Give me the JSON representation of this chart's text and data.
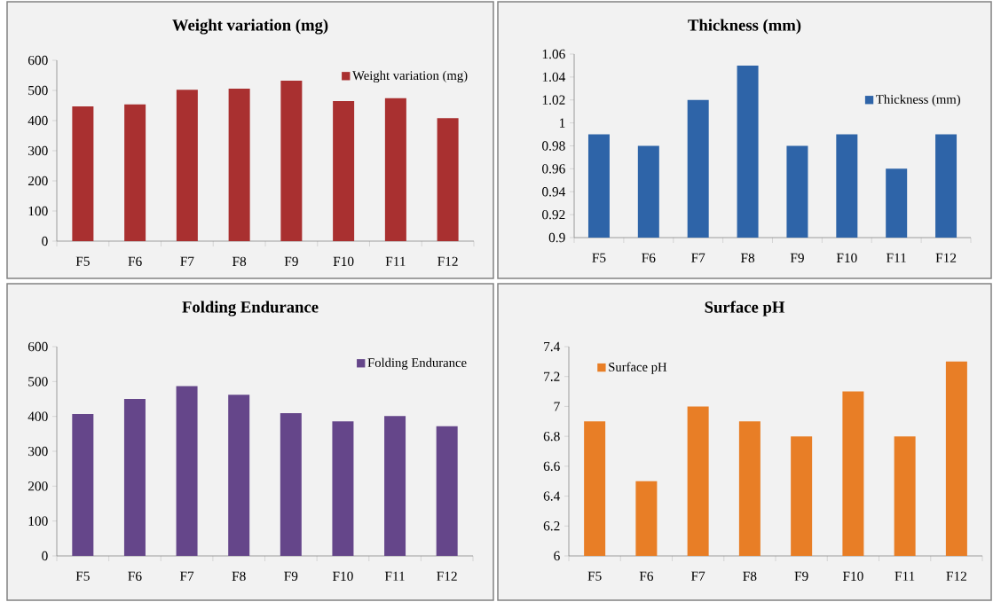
{
  "chart_data": [
    {
      "type": "bar",
      "title": "Weight variation (mg)",
      "categories": [
        "F5",
        "F6",
        "F7",
        "F8",
        "F9",
        "F10",
        "F11",
        "F12"
      ],
      "series": [
        {
          "name": "Weight variation (mg)",
          "color": "#a93030",
          "values": [
            447,
            454,
            502,
            506,
            532,
            465,
            474,
            408
          ]
        }
      ],
      "ylim": [
        0,
        600
      ],
      "yticks": [
        0,
        100,
        200,
        300,
        400,
        500,
        600
      ],
      "legend": "top right"
    },
    {
      "type": "bar",
      "title": "Thickness (mm)",
      "categories": [
        "F5",
        "F6",
        "F7",
        "F8",
        "F9",
        "F10",
        "F11",
        "F12"
      ],
      "series": [
        {
          "name": "Thickness (mm)",
          "color": "#2e64a8",
          "values": [
            0.99,
            0.98,
            1.02,
            1.05,
            0.98,
            0.99,
            0.96,
            0.99
          ]
        }
      ],
      "ylim": [
        0.9,
        1.06
      ],
      "yticks": [
        0.9,
        0.92,
        0.94,
        0.96,
        0.98,
        1,
        1.02,
        1.04,
        1.06
      ],
      "legend": "right"
    },
    {
      "type": "bar",
      "title": "Folding Endurance",
      "categories": [
        "F5",
        "F6",
        "F7",
        "F8",
        "F9",
        "F10",
        "F11",
        "F12"
      ],
      "series": [
        {
          "name": "Folding Endurance",
          "color": "#65468a",
          "values": [
            407,
            450,
            487,
            462,
            409,
            386,
            401,
            372
          ]
        }
      ],
      "ylim": [
        0,
        600
      ],
      "yticks": [
        0,
        100,
        200,
        300,
        400,
        500,
        600
      ],
      "legend": "top right"
    },
    {
      "type": "bar",
      "title": "Surface pH",
      "categories": [
        "F5",
        "F6",
        "F7",
        "F8",
        "F9",
        "F10",
        "F11",
        "F12"
      ],
      "series": [
        {
          "name": "Surface pH",
          "color": "#e87e26",
          "values": [
            6.9,
            6.5,
            7.0,
            6.9,
            6.8,
            7.1,
            6.8,
            7.3
          ]
        }
      ],
      "ylim": [
        6,
        7.4
      ],
      "yticks": [
        6,
        6.2,
        6.4,
        6.6,
        6.8,
        7,
        7.2,
        7.4
      ],
      "legend": "top left"
    }
  ]
}
